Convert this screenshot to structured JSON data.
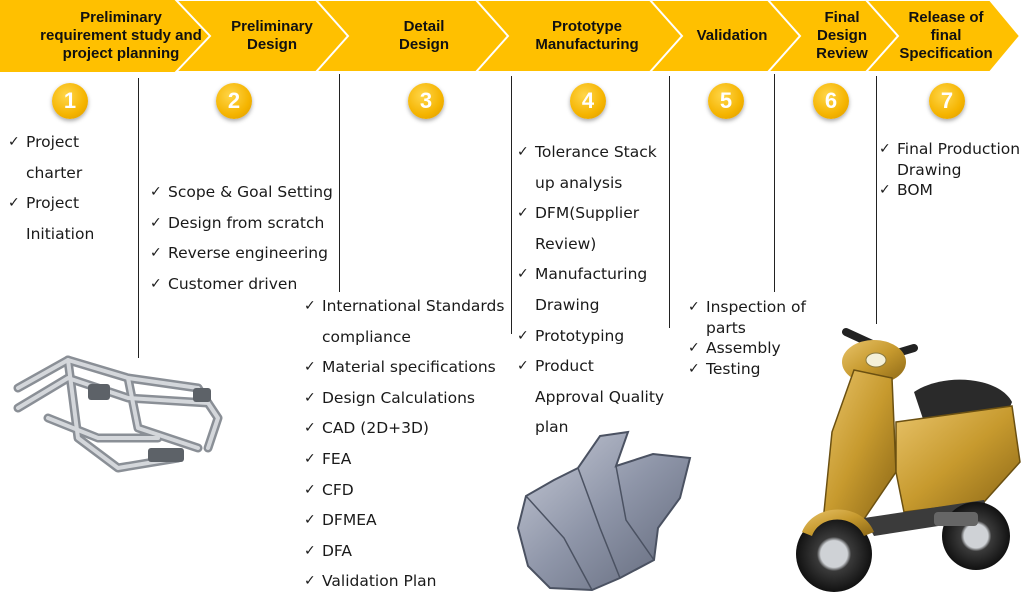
{
  "phases": [
    {
      "number": "1",
      "title": [
        "Preliminary",
        "requirement study and",
        "project planning"
      ],
      "tasks": [
        "Project charter",
        "Project Initiation"
      ]
    },
    {
      "number": "2",
      "title": [
        "Preliminary",
        "Design"
      ],
      "tasks": [
        "Scope & Goal Setting",
        "Design from scratch",
        "Reverse engineering",
        "Customer driven"
      ]
    },
    {
      "number": "3",
      "title": [
        "Detail",
        "Design"
      ],
      "tasks": [
        "International Standards compliance",
        "Material specifications",
        "Design Calculations",
        "CAD (2D+3D)",
        "FEA",
        "CFD",
        "DFMEA",
        "DFA",
        "Validation Plan"
      ]
    },
    {
      "number": "4",
      "title": [
        "Prototype",
        "Manufacturing"
      ],
      "tasks": [
        "Tolerance Stack up analysis",
        "DFM(Supplier Review)",
        "Manufacturing Drawing",
        "Prototyping",
        "Product Approval Quality plan"
      ]
    },
    {
      "number": "5",
      "title": [
        "Validation"
      ],
      "tasks": [
        "Inspection of parts",
        "Assembly",
        "Testing"
      ]
    },
    {
      "number": "6",
      "title": [
        "Final",
        "Design",
        "Review"
      ],
      "tasks": []
    },
    {
      "number": "7",
      "title": [
        "Release of",
        "final",
        "Specification"
      ],
      "tasks": [
        "Final Production Drawing",
        "BOM"
      ]
    }
  ],
  "colors": {
    "arrow": "#FFC000",
    "arrow_edge": "#ffffff",
    "badge": "#F5B400",
    "text": "#1a1a1a"
  },
  "icons": [
    "motorcycle-frame-image",
    "fairing-part-image",
    "scooter-image",
    "check-icon"
  ]
}
